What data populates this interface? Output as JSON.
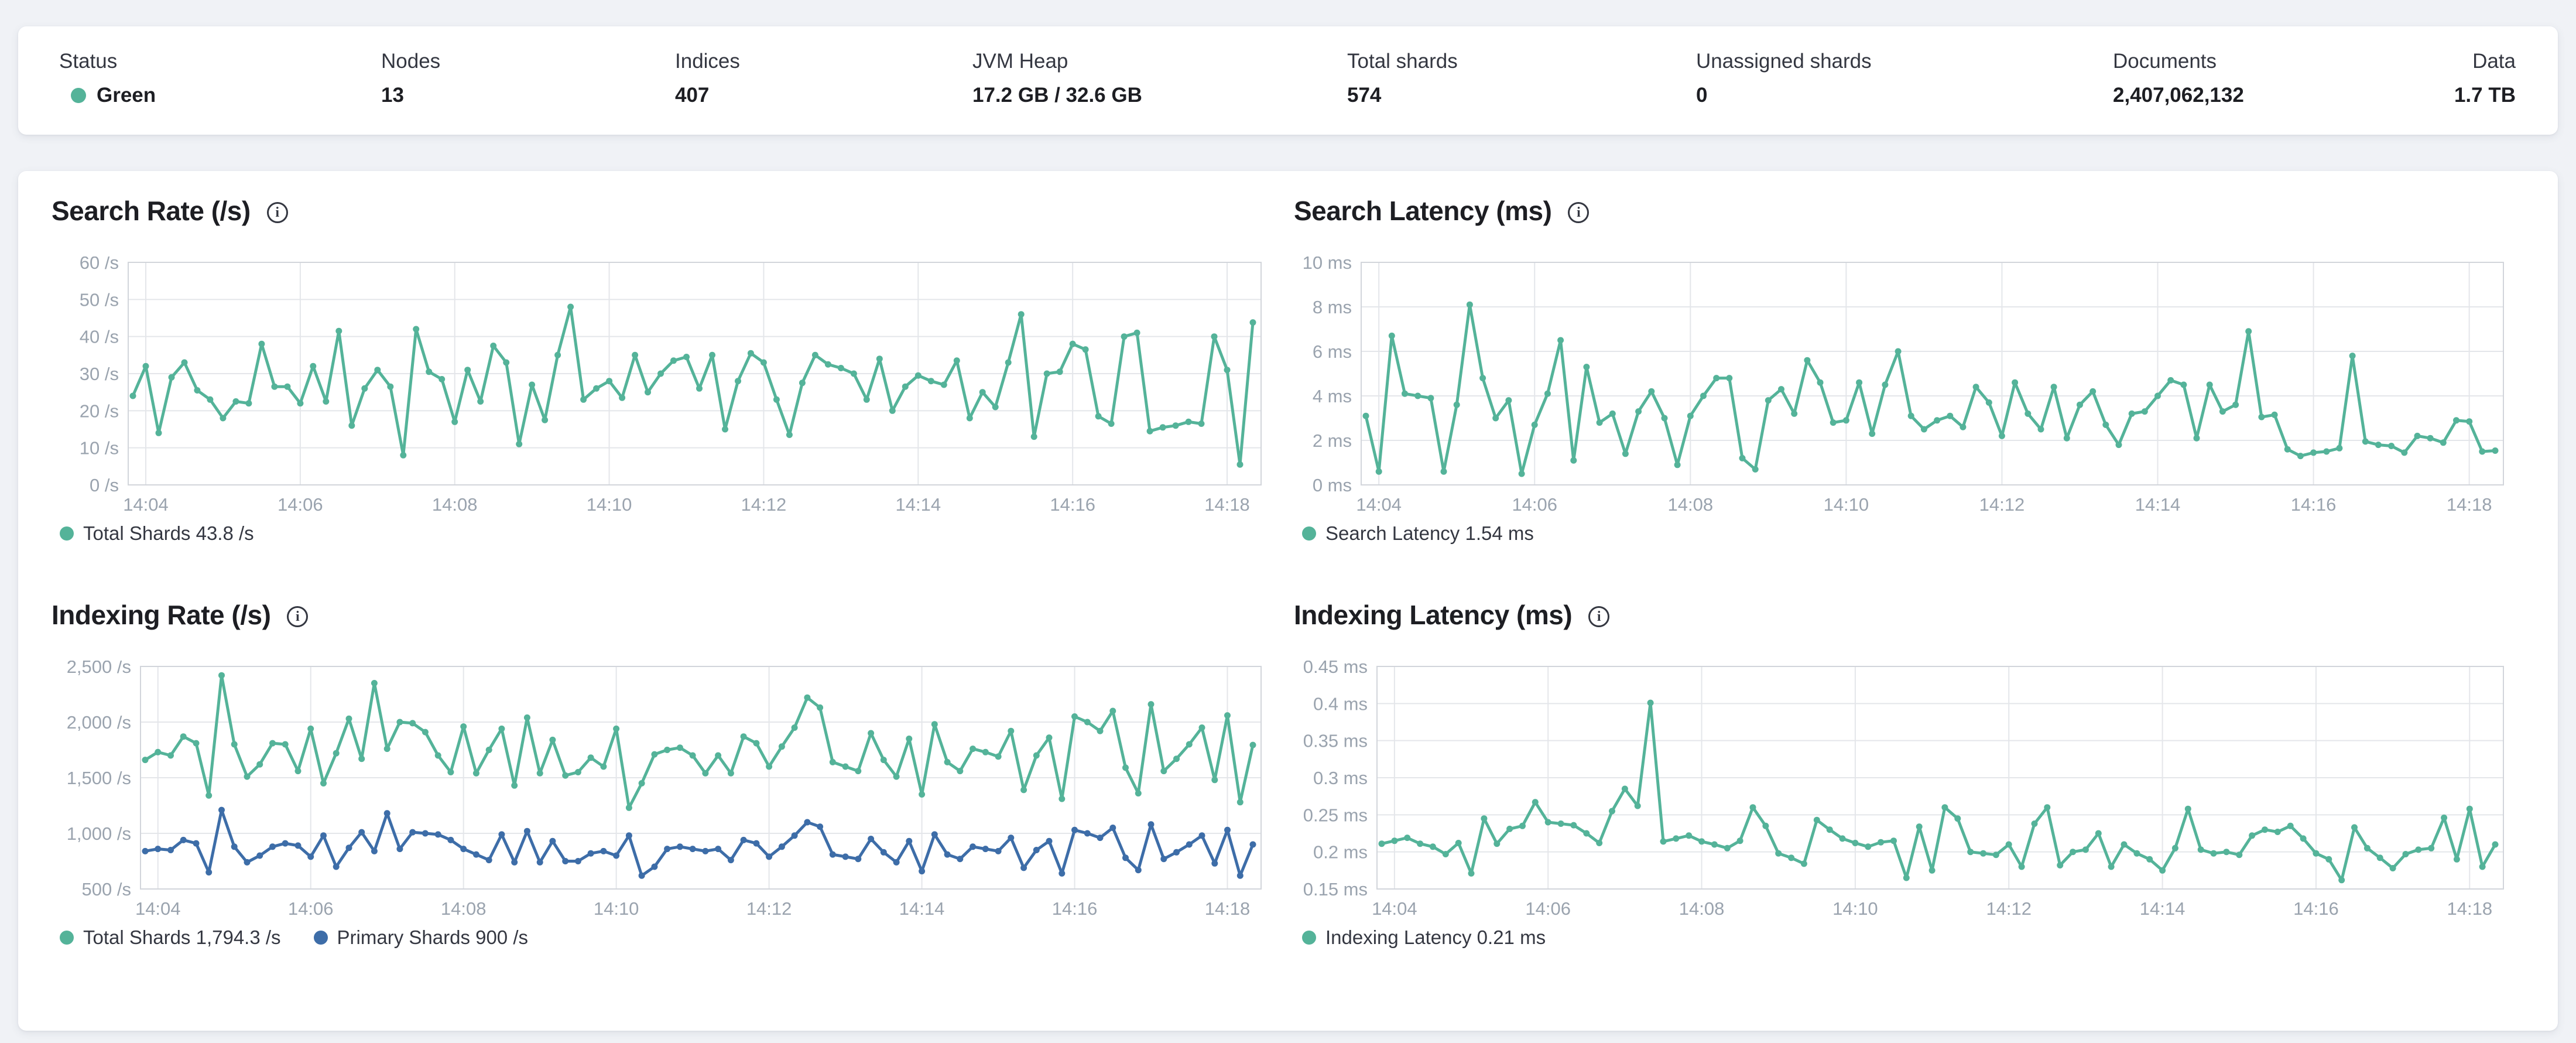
{
  "colors": {
    "teal": "#54B399",
    "blue": "#3D6DA8",
    "grid": "#E4E6EA",
    "plot_border": "#D2D5DB",
    "axis_text": "#9AA3AE",
    "title_text": "#1D1E23",
    "label_text": "#343741"
  },
  "status_bar": {
    "metrics": [
      {
        "label": "Status",
        "value": "Green",
        "dot_color": "#54B399"
      },
      {
        "label": "Nodes",
        "value": "13"
      },
      {
        "label": "Indices",
        "value": "407"
      },
      {
        "label": "JVM Heap",
        "value": "17.2 GB / 32.6 GB"
      },
      {
        "label": "Total shards",
        "value": "574"
      },
      {
        "label": "Unassigned shards",
        "value": "0"
      },
      {
        "label": "Documents",
        "value": "2,407,062,132"
      },
      {
        "label": "Data",
        "value": "1.7 TB"
      }
    ]
  },
  "chart_data": [
    {
      "type": "line",
      "title": "Search Rate (/s)",
      "ylim": [
        0,
        60
      ],
      "y_tick_labels": [
        "60 /s",
        "50 /s",
        "40 /s",
        "30 /s",
        "20 /s",
        "10 /s",
        "0 /s"
      ],
      "x_tick_labels": [
        "14:04",
        "14:06",
        "14:08",
        "14:10",
        "14:12",
        "14:14",
        "14:16",
        "14:18"
      ],
      "x_interval_seconds": 10,
      "gutter": 131,
      "legend": [
        {
          "label": "Total Shards 43.8 /s",
          "color": "#54B399"
        }
      ],
      "series": [
        {
          "name": "Total Shards",
          "color": "#54B399",
          "values": [
            24,
            32,
            14,
            29,
            33,
            25.5,
            23,
            18,
            22.5,
            22,
            38,
            26.5,
            26.5,
            22,
            32,
            22.5,
            41.5,
            16,
            26,
            31,
            26.5,
            8,
            42,
            30.5,
            28.5,
            17,
            31,
            22.5,
            37.5,
            33,
            11,
            27,
            17.5,
            35,
            48,
            23,
            26,
            28,
            23.5,
            35,
            25,
            30,
            33.5,
            34.5,
            26,
            35,
            15,
            28,
            35.5,
            33,
            23,
            13.5,
            27.5,
            35,
            32.5,
            31.5,
            30,
            23,
            34,
            20,
            26.5,
            29.5,
            28,
            27,
            33.5,
            18,
            25,
            21,
            33,
            46,
            13,
            30,
            30.5,
            38,
            36.5,
            18.5,
            16.5,
            40,
            41,
            14.5,
            15.5,
            16,
            17,
            16.5,
            40,
            31,
            5.5,
            43.8
          ]
        }
      ]
    },
    {
      "type": "line",
      "title": "Search Latency (ms)",
      "ylim": [
        0,
        10
      ],
      "y_tick_labels": [
        "10 ms",
        "8 ms",
        "6 ms",
        "4 ms",
        "2 ms",
        "0 ms"
      ],
      "x_tick_labels": [
        "14:04",
        "14:06",
        "14:08",
        "14:10",
        "14:12",
        "14:14",
        "14:16",
        "14:18"
      ],
      "x_interval_seconds": 10,
      "gutter": 115,
      "legend": [
        {
          "label": "Search Latency 1.54 ms",
          "color": "#54B399"
        }
      ],
      "series": [
        {
          "name": "Search Latency",
          "color": "#54B399",
          "values": [
            3.1,
            0.6,
            6.7,
            4.1,
            4.0,
            3.9,
            0.6,
            3.6,
            8.1,
            4.8,
            3.0,
            3.8,
            0.5,
            2.7,
            4.1,
            6.5,
            1.1,
            5.3,
            2.8,
            3.2,
            1.4,
            3.3,
            4.2,
            3.0,
            0.9,
            3.1,
            4.0,
            4.8,
            4.8,
            1.2,
            0.7,
            3.8,
            4.3,
            3.2,
            5.6,
            4.6,
            2.8,
            2.9,
            4.6,
            2.3,
            4.5,
            6.0,
            3.1,
            2.5,
            2.9,
            3.1,
            2.6,
            4.4,
            3.7,
            2.2,
            4.6,
            3.2,
            2.5,
            4.4,
            2.1,
            3.6,
            4.2,
            2.7,
            1.8,
            3.2,
            3.3,
            4.0,
            4.7,
            4.5,
            2.1,
            4.5,
            3.3,
            3.6,
            6.9,
            3.05,
            3.15,
            1.6,
            1.3,
            1.45,
            1.5,
            1.65,
            5.8,
            1.95,
            1.8,
            1.75,
            1.45,
            2.2,
            2.1,
            1.9,
            2.9,
            2.85,
            1.5,
            1.54
          ]
        }
      ]
    },
    {
      "type": "line",
      "title": "Indexing Rate (/s)",
      "ylim": [
        500,
        2500
      ],
      "y_tick_labels": [
        "2,500 /s",
        "2,000 /s",
        "1,500 /s",
        "1,000 /s",
        "500 /s"
      ],
      "x_tick_labels": [
        "14:04",
        "14:06",
        "14:08",
        "14:10",
        "14:12",
        "14:14",
        "14:16",
        "14:18"
      ],
      "x_interval_seconds": 10,
      "gutter": 152,
      "legend": [
        {
          "label": "Total Shards 1,794.3 /s",
          "color": "#54B399"
        },
        {
          "label": "Primary Shards 900 /s",
          "color": "#3D6DA8"
        }
      ],
      "series": [
        {
          "name": "Total Shards",
          "color": "#54B399",
          "values": [
            1660,
            1730,
            1700,
            1870,
            1810,
            1340,
            2420,
            1800,
            1510,
            1620,
            1810,
            1800,
            1560,
            1940,
            1450,
            1720,
            2030,
            1670,
            2350,
            1760,
            2000,
            1990,
            1910,
            1700,
            1550,
            1960,
            1540,
            1750,
            1940,
            1430,
            2040,
            1540,
            1840,
            1520,
            1550,
            1680,
            1600,
            1940,
            1230,
            1450,
            1710,
            1750,
            1770,
            1700,
            1540,
            1700,
            1540,
            1870,
            1810,
            1600,
            1780,
            1950,
            2220,
            2130,
            1640,
            1600,
            1560,
            1900,
            1660,
            1510,
            1850,
            1350,
            1980,
            1640,
            1560,
            1760,
            1730,
            1690,
            1920,
            1390,
            1700,
            1860,
            1310,
            2050,
            2000,
            1920,
            2100,
            1590,
            1360,
            2160,
            1560,
            1670,
            1800,
            1950,
            1480,
            2060,
            1280,
            1794.3
          ]
        },
        {
          "name": "Primary Shards",
          "color": "#3D6DA8",
          "values": [
            840,
            860,
            850,
            940,
            910,
            650,
            1210,
            880,
            740,
            800,
            880,
            910,
            890,
            790,
            980,
            700,
            870,
            1010,
            840,
            1180,
            860,
            1010,
            1000,
            990,
            940,
            860,
            810,
            760,
            990,
            740,
            1020,
            740,
            930,
            750,
            750,
            820,
            840,
            800,
            980,
            620,
            700,
            860,
            880,
            860,
            840,
            860,
            760,
            940,
            910,
            790,
            880,
            980,
            1100,
            1060,
            810,
            790,
            770,
            950,
            830,
            740,
            930,
            660,
            990,
            810,
            770,
            880,
            860,
            840,
            960,
            690,
            850,
            930,
            640,
            1030,
            1000,
            960,
            1050,
            780,
            670,
            1080,
            770,
            830,
            900,
            980,
            730,
            1030,
            620,
            900
          ]
        }
      ]
    },
    {
      "type": "line",
      "title": "Indexing Latency (ms)",
      "ylim": [
        0.15,
        0.45
      ],
      "y_tick_labels": [
        "0.45 ms",
        "0.4 ms",
        "0.35 ms",
        "0.3 ms",
        "0.25 ms",
        "0.2 ms",
        "0.15 ms"
      ],
      "x_tick_labels": [
        "14:04",
        "14:06",
        "14:08",
        "14:10",
        "14:12",
        "14:14",
        "14:16",
        "14:18"
      ],
      "x_interval_seconds": 10,
      "gutter": 142,
      "legend": [
        {
          "label": "Indexing Latency 0.21 ms",
          "color": "#54B399"
        }
      ],
      "series": [
        {
          "name": "Indexing Latency",
          "color": "#54B399",
          "values": [
            0.211,
            0.215,
            0.219,
            0.211,
            0.207,
            0.197,
            0.212,
            0.171,
            0.245,
            0.211,
            0.231,
            0.235,
            0.267,
            0.24,
            0.238,
            0.236,
            0.225,
            0.212,
            0.255,
            0.285,
            0.262,
            0.401,
            0.214,
            0.218,
            0.222,
            0.214,
            0.21,
            0.205,
            0.215,
            0.26,
            0.235,
            0.198,
            0.192,
            0.184,
            0.243,
            0.23,
            0.218,
            0.212,
            0.207,
            0.213,
            0.215,
            0.165,
            0.234,
            0.175,
            0.26,
            0.245,
            0.2,
            0.198,
            0.196,
            0.21,
            0.18,
            0.238,
            0.26,
            0.182,
            0.2,
            0.203,
            0.225,
            0.18,
            0.21,
            0.198,
            0.19,
            0.175,
            0.205,
            0.258,
            0.203,
            0.198,
            0.2,
            0.196,
            0.222,
            0.23,
            0.227,
            0.235,
            0.218,
            0.198,
            0.19,
            0.162,
            0.233,
            0.205,
            0.192,
            0.178,
            0.197,
            0.203,
            0.205,
            0.246,
            0.19,
            0.258,
            0.18,
            0.21
          ]
        }
      ]
    }
  ]
}
